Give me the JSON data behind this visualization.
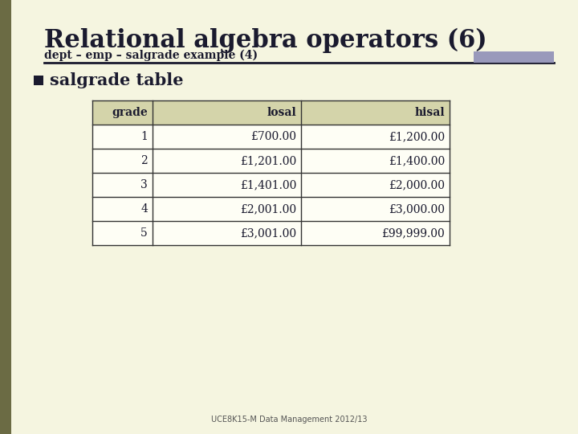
{
  "title": "Relational algebra operators (6)",
  "subtitle": "dept – emp – salgrade example (4)",
  "bullet": "salgrade table",
  "columns": [
    "grade",
    "losal",
    "hisal"
  ],
  "rows": [
    [
      "1",
      "£700.00",
      "£1,200.00"
    ],
    [
      "2",
      "£1,201.00",
      "£1,400.00"
    ],
    [
      "3",
      "£1,401.00",
      "£2,000.00"
    ],
    [
      "4",
      "£2,001.00",
      "£3,000.00"
    ],
    [
      "5",
      "£3,001.00",
      "£99,999.00"
    ]
  ],
  "slide_bg": "#f5f5e0",
  "title_color": "#1a1a2e",
  "subtitle_color": "#1a1a2e",
  "table_header_bg": "#d4d4aa",
  "table_row_bg": "#fefef5",
  "table_border_color": "#333333",
  "accent_bar_color": "#9999bb",
  "left_accent_color": "#6b6b44",
  "footer_text": "UCE8K15-M Data Management 2012/13",
  "footer_color": "#555555",
  "title_fontsize": 22,
  "subtitle_fontsize": 10,
  "bullet_fontsize": 15,
  "header_fontsize": 10,
  "cell_fontsize": 10
}
